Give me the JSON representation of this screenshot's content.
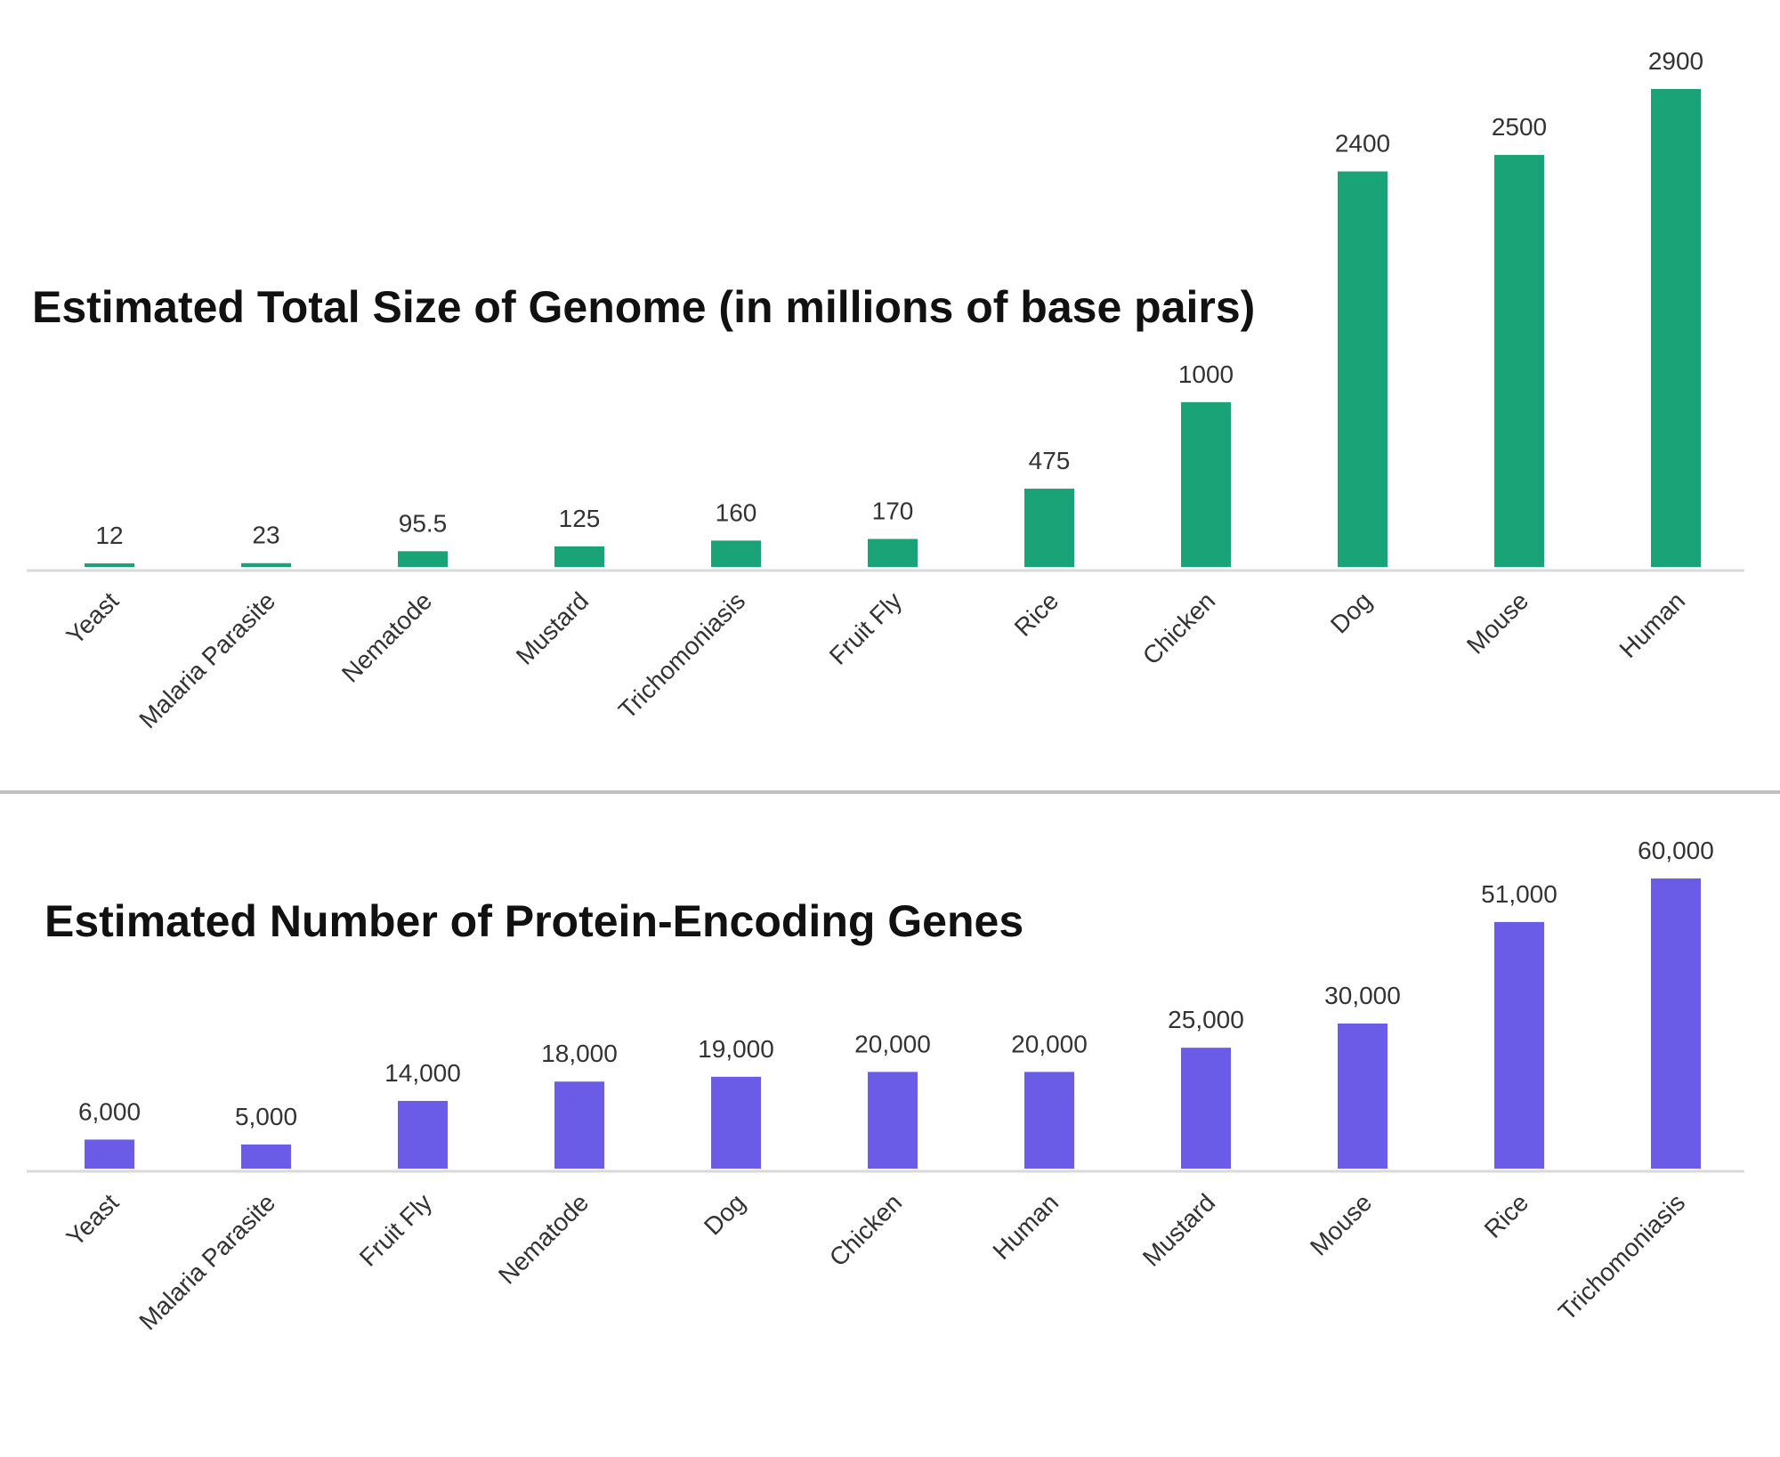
{
  "chart_data": [
    {
      "type": "bar",
      "title": "Estimated Total Size of Genome (in millions of base pairs)",
      "categories": [
        "Yeast",
        "Malaria Parasite",
        "Nematode",
        "Mustard",
        "Trichomoniasis",
        "Fruit Fly",
        "Rice",
        "Chicken",
        "Dog",
        "Mouse",
        "Human"
      ],
      "values": [
        12,
        23,
        95.5,
        125,
        160,
        170,
        475,
        1000,
        2400,
        2500,
        2900
      ],
      "value_labels": [
        "12",
        "23",
        "95.5",
        "125",
        "160",
        "170",
        "475",
        "1000",
        "2400",
        "2500",
        "2900"
      ],
      "ylim": [
        0,
        2900
      ],
      "color": "#1aa376",
      "grid": false,
      "legend": "none"
    },
    {
      "type": "bar",
      "title": "Estimated Number of Protein-Encoding Genes",
      "categories": [
        "Yeast",
        "Malaria Parasite",
        "Fruit Fly",
        "Nematode",
        "Dog",
        "Chicken",
        "Human",
        "Mustard",
        "Mouse",
        "Rice",
        "Trichomoniasis"
      ],
      "values": [
        6000,
        5000,
        14000,
        18000,
        19000,
        20000,
        20000,
        25000,
        30000,
        51000,
        60000
      ],
      "value_labels": [
        "6,000",
        "5,000",
        "14,000",
        "18,000",
        "19,000",
        "20,000",
        "20,000",
        "25,000",
        "30,000",
        "51,000",
        "60,000"
      ],
      "ylim": [
        0,
        60000
      ],
      "color": "#6b5ce7",
      "grid": false,
      "legend": "none"
    }
  ]
}
